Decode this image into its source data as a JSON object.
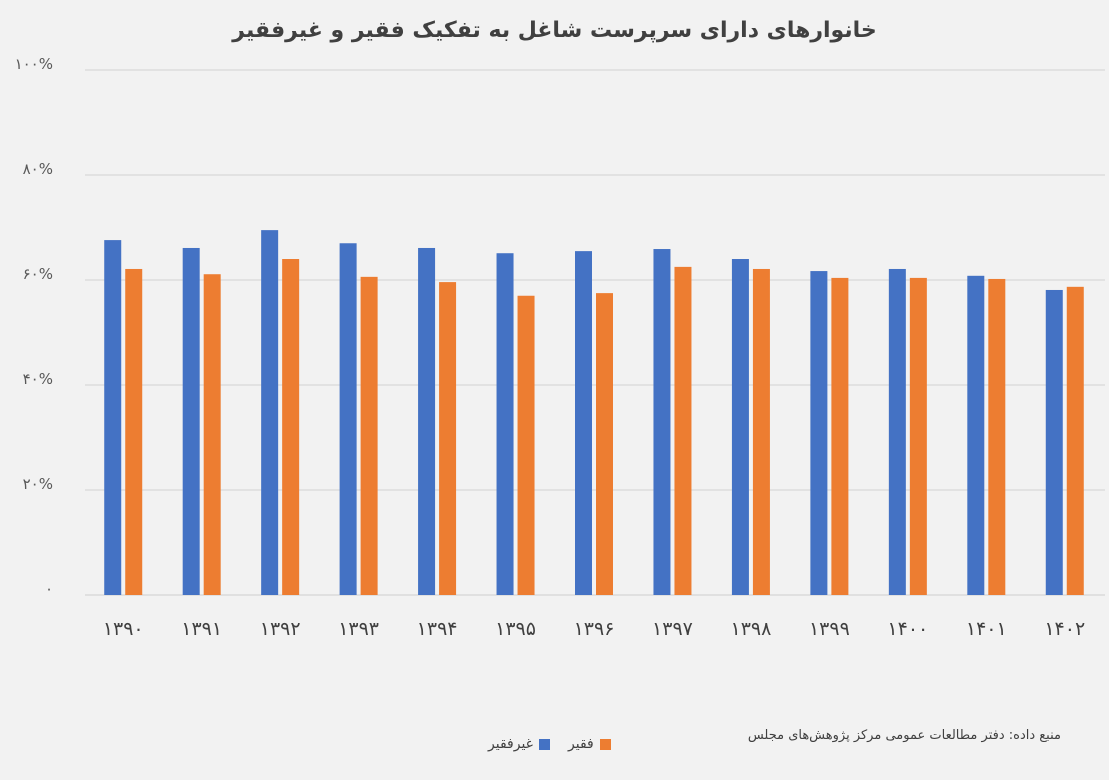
{
  "chart_data": {
    "type": "bar",
    "title": "خانوارهای دارای سرپرست شاغل به تفکیک فقیر و غیرفقیر",
    "categories": [
      "۱۳۹۰",
      "۱۳۹۱",
      "۱۳۹۲",
      "۱۳۹۳",
      "۱۳۹۴",
      "۱۳۹۵",
      "۱۳۹۶",
      "۱۳۹۷",
      "۱۳۹۸",
      "۱۳۹۹",
      "۱۴۰۰",
      "۱۴۰۱",
      "۱۴۰۲"
    ],
    "series": [
      {
        "name": "غیرفقیر",
        "color": "#4472c4",
        "values": [
          67.6,
          66.1,
          69.5,
          67.0,
          66.1,
          65.1,
          65.5,
          65.9,
          64.0,
          61.7,
          62.1,
          60.8,
          58.1
        ]
      },
      {
        "name": "فقیر",
        "color": "#ed7d31",
        "values": [
          62.1,
          61.1,
          64.0,
          60.6,
          59.6,
          57.0,
          57.5,
          62.5,
          62.1,
          60.4,
          60.4,
          60.2,
          58.7
        ]
      }
    ],
    "ylim": [
      0,
      100
    ],
    "yticks": [
      0,
      20,
      40,
      60,
      80,
      100
    ],
    "ytick_labels": [
      "۰",
      "۲۰%",
      "۴۰%",
      "۶۰%",
      "۸۰%",
      "۱۰۰%"
    ],
    "grid": true,
    "legend_position": "bottom",
    "xlabel": "",
    "ylabel": ""
  },
  "source": "منبع داده: دفتر مطالعات عمومی مرکز پژوهش‌های مجلس"
}
